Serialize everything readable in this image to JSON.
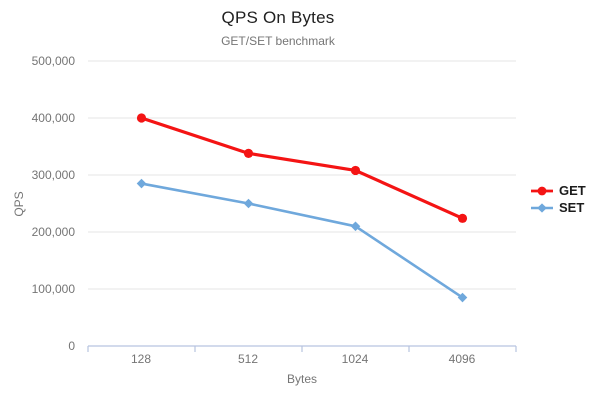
{
  "header": {
    "title": "QPS On Bytes",
    "subtitle": "GET/SET benchmark"
  },
  "chart_data": {
    "type": "line",
    "title": "QPS On Bytes",
    "subtitle": "GET/SET benchmark",
    "xlabel": "Bytes",
    "ylabel": "QPS",
    "x_type": "categorical",
    "categories": [
      128,
      512,
      1024,
      4096
    ],
    "series": [
      {
        "name": "GET",
        "color": "#f41414",
        "marker": "circle",
        "values": [
          400000,
          338000,
          308000,
          224000
        ]
      },
      {
        "name": "SET",
        "color": "#6fa8dc",
        "marker": "diamond",
        "values": [
          285000,
          250000,
          210000,
          85000
        ]
      }
    ],
    "ylim": [
      0,
      500000
    ],
    "y_tick_step": 100000,
    "grid": "horizontal",
    "legend_position": "right"
  },
  "axes": {
    "ylabel": "QPS",
    "xlabel": "Bytes",
    "y_ticks": [
      "500,000",
      "400,000",
      "300,000",
      "200,000",
      "100,000",
      "0"
    ],
    "x_ticks": [
      "128",
      "512",
      "1024",
      "4096"
    ]
  },
  "legend": {
    "items": [
      {
        "label": "GET"
      },
      {
        "label": "SET"
      }
    ]
  },
  "colors": {
    "get_series": "#f41414",
    "set_series": "#6fa8dc",
    "axis_line": "#b7c4e0",
    "gridline": "#e6e6e6",
    "tick_text": "#757575",
    "title_text": "#212121"
  }
}
